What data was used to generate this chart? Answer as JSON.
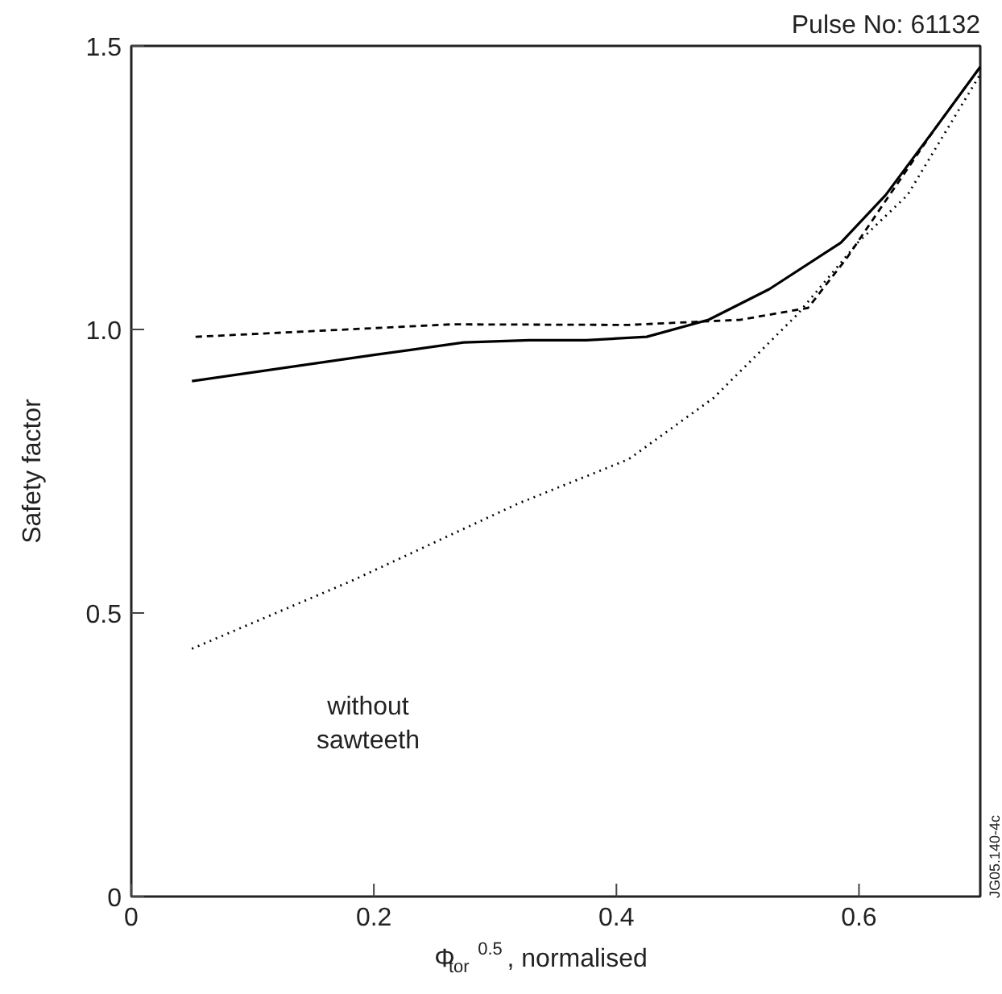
{
  "chart_data": {
    "type": "line",
    "title": "Pulse No: 61132",
    "xlabel": "Φ$_{tor}$$^{0.5}$, normalised",
    "ylabel": "Safety factor",
    "xlim": [
      0,
      0.7
    ],
    "ylim": [
      0,
      1.5
    ],
    "xticks": [
      0,
      0.2,
      0.4,
      0.6
    ],
    "yticks": [
      0,
      0.5,
      {
        "value": 1.0,
        "label": "1.0"
      },
      1.5
    ],
    "grid": false,
    "marker": "none",
    "annotations": [
      "without\nsawteeth",
      "JG05.140-4c"
    ],
    "series": [
      {
        "color": "#000000",
        "line_style": "solid",
        "x": [
          0.05,
          0.2,
          0.274,
          0.328,
          0.375,
          0.425,
          0.476,
          0.526,
          0.585,
          0.622,
          0.663,
          0.7
        ],
        "values": [
          0.909,
          0.955,
          0.977,
          0.981,
          0.981,
          0.987,
          1.017,
          1.071,
          1.153,
          1.237,
          1.355,
          1.463
        ]
      },
      {
        "color": "#000000",
        "line_style": "dashed",
        "x": [
          0.053,
          0.264,
          0.41,
          0.502,
          0.558,
          0.59,
          0.622,
          0.663,
          0.7
        ],
        "values": [
          0.987,
          1.009,
          1.008,
          1.017,
          1.038,
          1.126,
          1.227,
          1.355,
          1.463
        ]
      },
      {
        "color": "#000000",
        "line_style": "dotted",
        "x": [
          0.05,
          0.182,
          0.319,
          0.41,
          0.48,
          0.549,
          0.599,
          0.64,
          0.7
        ],
        "values": [
          0.437,
          0.557,
          0.693,
          0.771,
          0.879,
          1.026,
          1.153,
          1.237,
          1.45
        ]
      }
    ]
  }
}
